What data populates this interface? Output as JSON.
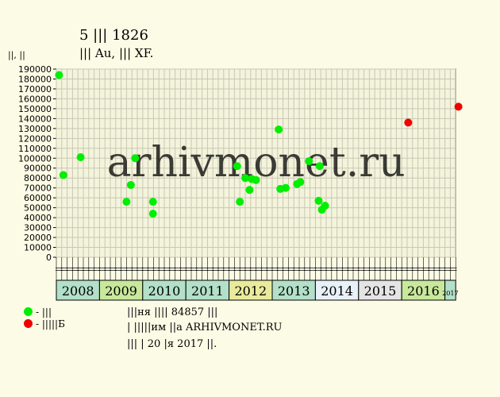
{
  "header": {
    "title_line1": "5 ||| 1826",
    "title_line2": "||| Au, ||| XF.",
    "y_unit": "||, ||"
  },
  "watermark": "arhivmonet.ru",
  "legend": {
    "green_label": "- |||",
    "red_label": "- |||||Б"
  },
  "footer": {
    "line1": "|||ня |||| 84857 |||",
    "line2": "| |||||им ||а ARHIVMONET.RU",
    "line3": "||| | 20 |я 2017 ||."
  },
  "colors": {
    "background": "#fcfce6",
    "plot_background": "#f4f4dc",
    "grid": "#c8c8b4",
    "green": "#00ee00",
    "red": "#ee0000",
    "watermark": "#c4c4c4"
  },
  "chart_data": {
    "type": "scatter",
    "title": "5 ||| 1826",
    "ylim": [
      0,
      190000
    ],
    "yticks": [
      0,
      10000,
      20000,
      30000,
      40000,
      50000,
      60000,
      70000,
      80000,
      90000,
      100000,
      110000,
      120000,
      130000,
      140000,
      150000,
      160000,
      170000,
      180000,
      190000
    ],
    "grid": true,
    "month_labels": [
      "||",
      "||",
      "||",
      "||",
      "||",
      "||",
      "||",
      "||",
      "||",
      "||",
      "||",
      "||",
      "||",
      "||",
      "||",
      "||",
      "||",
      "||",
      "||",
      "||",
      "||",
      "||",
      "||",
      "||",
      "||",
      "||",
      "||",
      "||",
      "||",
      "||",
      "||",
      "||",
      "||",
      "||",
      "||",
      "||",
      "||",
      "||",
      "||",
      "||",
      "||",
      "||",
      "||",
      "||",
      "||",
      "||",
      "||",
      "||",
      "||",
      "||",
      "||",
      "||",
      "||",
      "||",
      "||",
      "||",
      "||",
      "||",
      "||",
      "||",
      "||",
      "||",
      "||",
      "||",
      "||",
      "||",
      "||",
      "||",
      "||",
      "||",
      "||",
      "||",
      "||",
      "||",
      "||",
      "||",
      "||",
      "||",
      "||",
      "||",
      "||",
      "||",
      "||",
      "||",
      "||",
      "||",
      "||",
      "||",
      "||",
      "||"
    ],
    "years": [
      {
        "label": "2008",
        "months": 8,
        "color": "#b2e0c8"
      },
      {
        "label": "2009",
        "months": 8,
        "color": "#c8e89c"
      },
      {
        "label": "2010",
        "months": 8,
        "color": "#b2e0c8"
      },
      {
        "label": "2011",
        "months": 8,
        "color": "#b2e0c8"
      },
      {
        "label": "2012",
        "months": 8,
        "color": "#eaea9c"
      },
      {
        "label": "2013",
        "months": 8,
        "color": "#b2e0c8"
      },
      {
        "label": "2014",
        "months": 8,
        "color": "#e8f0f8"
      },
      {
        "label": "2015",
        "months": 8,
        "color": "#e4e4e4"
      },
      {
        "label": "2016",
        "months": 8,
        "color": "#c8e89c"
      },
      {
        "label": "2017",
        "months": 2,
        "color": "#b2e0c8"
      }
    ],
    "series": [
      {
        "name": "- |||",
        "color": "#00ee00",
        "points": [
          {
            "x": 0.5,
            "y": 184000
          },
          {
            "x": 1.3,
            "y": 83000
          },
          {
            "x": 4.5,
            "y": 101000
          },
          {
            "x": 13.0,
            "y": 56000
          },
          {
            "x": 13.8,
            "y": 73000
          },
          {
            "x": 14.6,
            "y": 100000
          },
          {
            "x": 17.9,
            "y": 56000
          },
          {
            "x": 17.9,
            "y": 44000
          },
          {
            "x": 33.5,
            "y": 92000
          },
          {
            "x": 34.0,
            "y": 56000
          },
          {
            "x": 35.0,
            "y": 80000
          },
          {
            "x": 35.8,
            "y": 68000
          },
          {
            "x": 36.2,
            "y": 79000
          },
          {
            "x": 37.0,
            "y": 78000
          },
          {
            "x": 41.2,
            "y": 129000
          },
          {
            "x": 41.5,
            "y": 69000
          },
          {
            "x": 42.5,
            "y": 70000
          },
          {
            "x": 44.6,
            "y": 74000
          },
          {
            "x": 45.2,
            "y": 76000
          },
          {
            "x": 46.8,
            "y": 97000
          },
          {
            "x": 48.6,
            "y": 57000
          },
          {
            "x": 48.8,
            "y": 92000
          },
          {
            "x": 49.2,
            "y": 48000
          },
          {
            "x": 49.8,
            "y": 52000
          }
        ]
      },
      {
        "name": "- |||||Б",
        "color": "#ee0000",
        "points": [
          {
            "x": 65.2,
            "y": 136000
          },
          {
            "x": 74.5,
            "y": 152000
          }
        ]
      }
    ]
  }
}
